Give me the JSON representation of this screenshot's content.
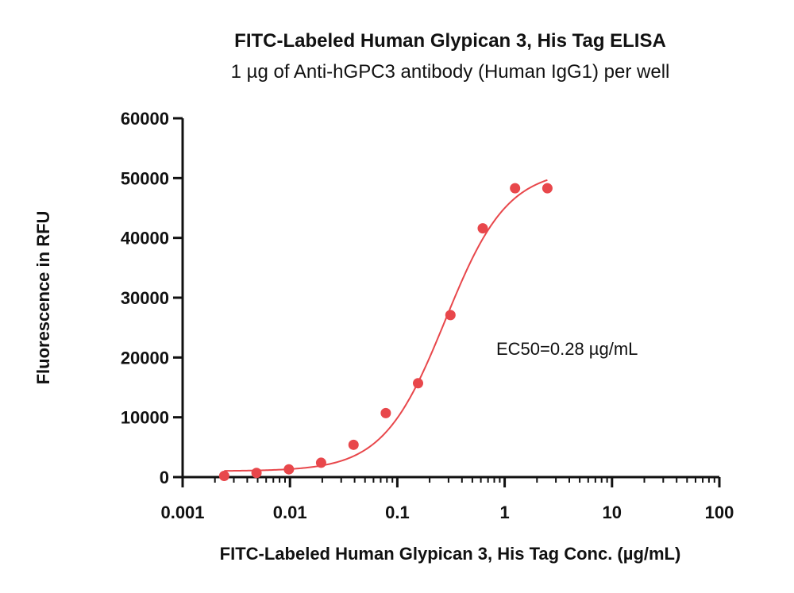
{
  "chart_data": {
    "type": "scatter",
    "title": "FITC-Labeled Human Glypican 3, His Tag ELISA",
    "subtitle": "1 µg of Anti-hGPC3 antibody (Human IgG1) per well",
    "xlabel": "FITC-Labeled Human Glypican 3, His Tag Conc. (µg/mL)",
    "ylabel": "Fluorescence in RFU",
    "x_scale": "log",
    "xlim": [
      0.001,
      100
    ],
    "ylim": [
      0,
      60000
    ],
    "x_ticks": [
      0.001,
      0.01,
      0.1,
      1,
      10,
      100
    ],
    "x_tick_labels": [
      "0.001",
      "0.01",
      "0.1",
      "1",
      "10",
      "100"
    ],
    "y_ticks": [
      0,
      10000,
      20000,
      30000,
      40000,
      50000,
      60000
    ],
    "y_tick_labels": [
      "0",
      "10000",
      "20000",
      "30000",
      "40000",
      "50000",
      "60000"
    ],
    "grid": false,
    "legend": "none",
    "series": [
      {
        "color": "#e8474b",
        "x": [
          0.00244,
          0.00488,
          0.00977,
          0.0195,
          0.0391,
          0.0781,
          0.156,
          0.3125,
          0.625,
          1.25,
          2.5
        ],
        "y": [
          200,
          700,
          1300,
          2400,
          5400,
          10700,
          15700,
          27100,
          41600,
          48300,
          48300
        ]
      }
    ],
    "fit_curve": {
      "color": "#e8474b",
      "model": "4PL",
      "bottom": 1000,
      "top": 51500,
      "ec50": 0.28,
      "hill": 1.5,
      "x_range": [
        0.00244,
        2.5
      ]
    },
    "annotations": [
      {
        "text": "EC50=0.28 µg/mL"
      }
    ]
  }
}
